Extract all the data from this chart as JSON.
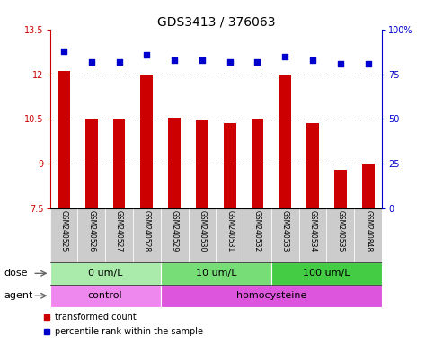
{
  "title": "GDS3413 / 376063",
  "samples": [
    "GSM240525",
    "GSM240526",
    "GSM240527",
    "GSM240528",
    "GSM240529",
    "GSM240530",
    "GSM240531",
    "GSM240532",
    "GSM240533",
    "GSM240534",
    "GSM240535",
    "GSM240848"
  ],
  "transformed_count": [
    12.1,
    10.5,
    10.5,
    12.0,
    10.55,
    10.45,
    10.35,
    10.5,
    12.0,
    10.35,
    8.8,
    9.0
  ],
  "percentile_rank": [
    88,
    82,
    82,
    86,
    83,
    83,
    82,
    82,
    85,
    83,
    81,
    81
  ],
  "ylim_left": [
    7.5,
    13.5
  ],
  "ylim_right": [
    0,
    100
  ],
  "yticks_left": [
    7.5,
    9.0,
    10.5,
    12.0,
    13.5
  ],
  "yticks_right": [
    0,
    25,
    50,
    75,
    100
  ],
  "ytick_labels_left": [
    "7.5",
    "9",
    "10.5",
    "12",
    "13.5"
  ],
  "ytick_labels_right": [
    "0",
    "25",
    "50",
    "75",
    "100%"
  ],
  "bar_color": "#cc0000",
  "dot_color": "#0000cc",
  "bar_baseline": 7.5,
  "dose_groups": [
    {
      "label": "0 um/L",
      "start": 0,
      "end": 4,
      "color": "#aaeaaa"
    },
    {
      "label": "10 um/L",
      "start": 4,
      "end": 8,
      "color": "#77dd77"
    },
    {
      "label": "100 um/L",
      "start": 8,
      "end": 12,
      "color": "#44cc44"
    }
  ],
  "agent_groups": [
    {
      "label": "control",
      "start": 0,
      "end": 4,
      "color": "#ee88ee"
    },
    {
      "label": "homocysteine",
      "start": 4,
      "end": 12,
      "color": "#dd55dd"
    }
  ],
  "legend_items": [
    {
      "label": "transformed count",
      "color": "#cc0000"
    },
    {
      "label": "percentile rank within the sample",
      "color": "#0000cc"
    }
  ],
  "bg_color": "#ffffff",
  "label_area_bg": "#cccccc",
  "title_fontsize": 10,
  "tick_fontsize": 7,
  "sample_fontsize": 5.5,
  "row_fontsize": 8,
  "legend_fontsize": 7
}
